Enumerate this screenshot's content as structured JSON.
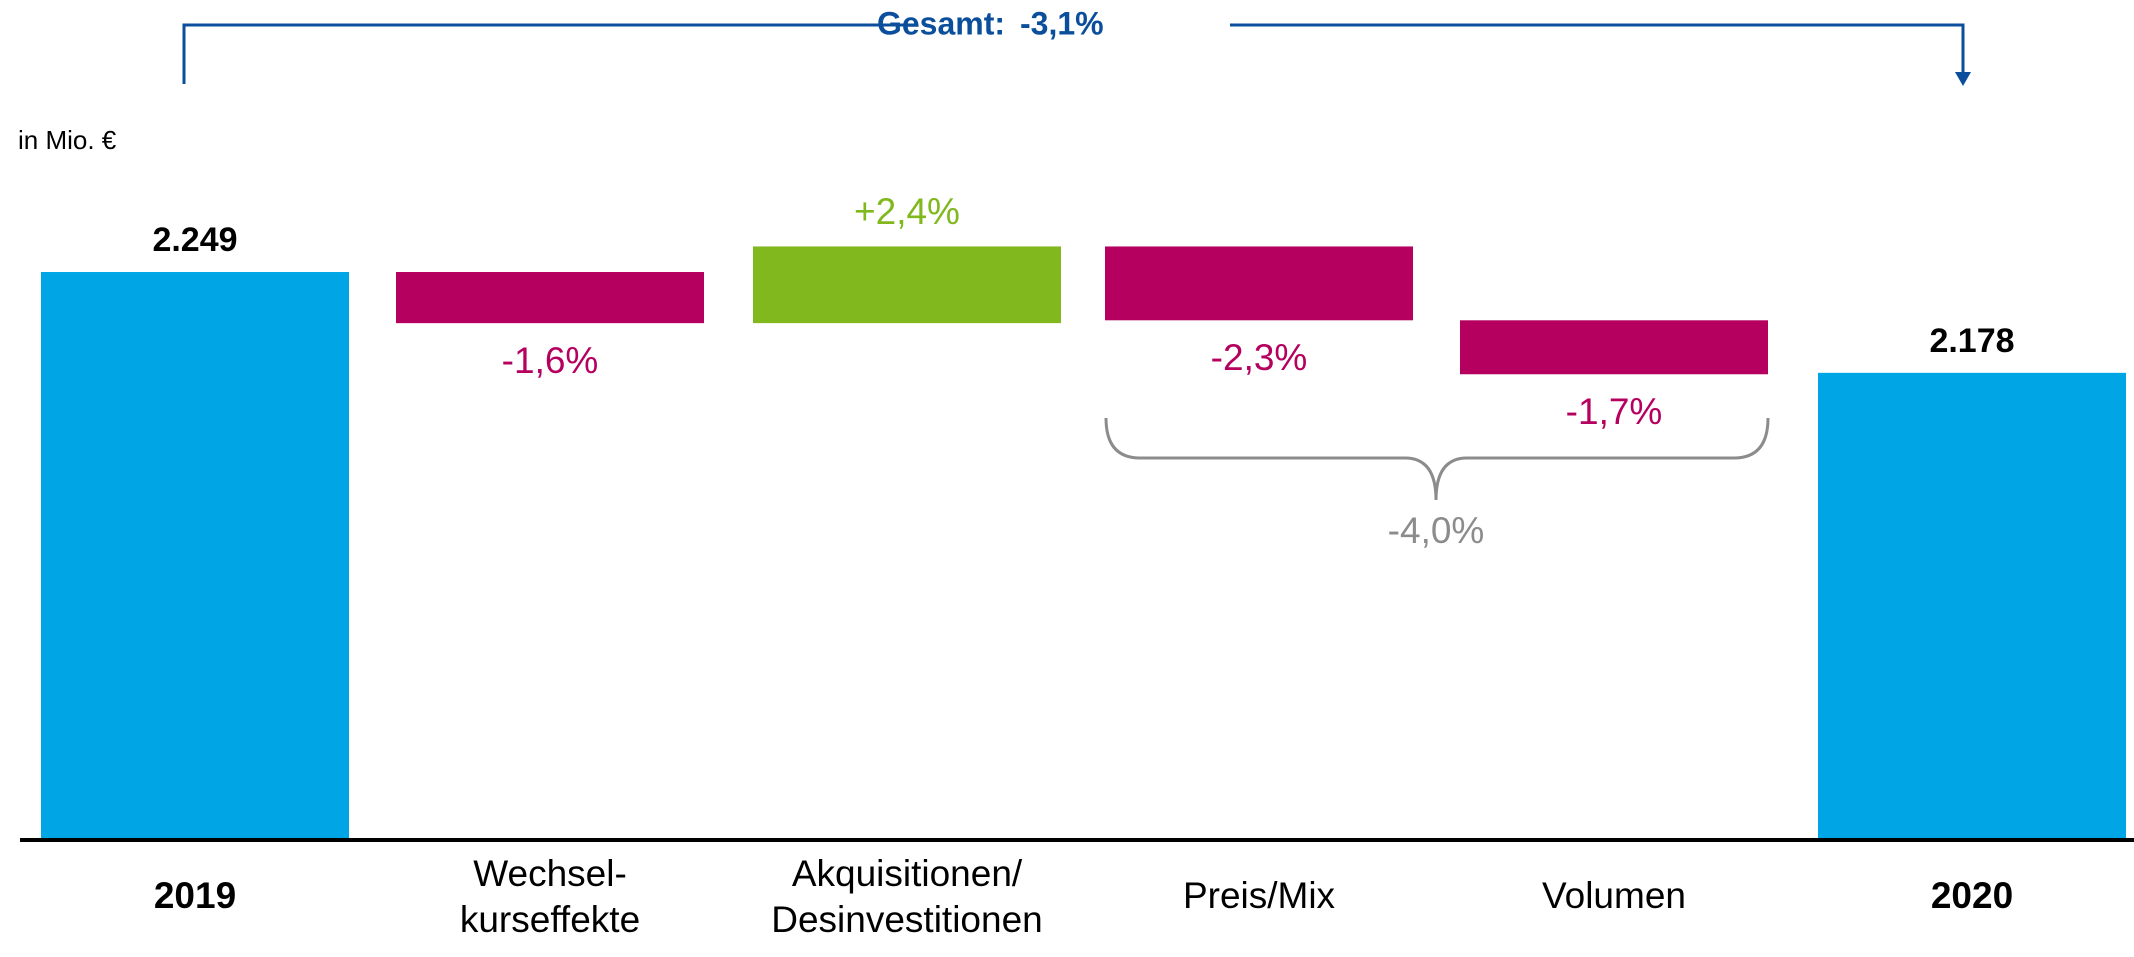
{
  "chart_data": {
    "type": "waterfall",
    "y_label": "in Mio. €",
    "categories": [
      "2019",
      "Wechsel-\nkurseffekte",
      "Akquisitionen/\nDesinvestitionen",
      "Preis/Mix",
      "Volumen",
      "2020"
    ],
    "measure": [
      "total",
      "relative",
      "relative",
      "relative",
      "relative",
      "total"
    ],
    "values": [
      2249,
      -36,
      54,
      -52,
      -38,
      2178
    ],
    "value_labels": [
      "2.249",
      null,
      null,
      null,
      null,
      "2.178"
    ],
    "percent_changes": [
      null,
      -1.6,
      2.4,
      -2.3,
      -1.7,
      null
    ],
    "percent_labels": [
      null,
      "-1,6%",
      "+2,4%",
      "-2,3%",
      "-1,7%",
      null
    ],
    "colors": {
      "total": "#00a5e6",
      "decrease": "#b5005f",
      "increase": "#80b81d"
    },
    "ylim": [
      1849,
      2330
    ],
    "total_change": {
      "label": "Gesamt:",
      "value": -3.1,
      "value_label": "-3,1%"
    },
    "bracket": {
      "value": -4.0,
      "label": "-4,0%"
    }
  }
}
